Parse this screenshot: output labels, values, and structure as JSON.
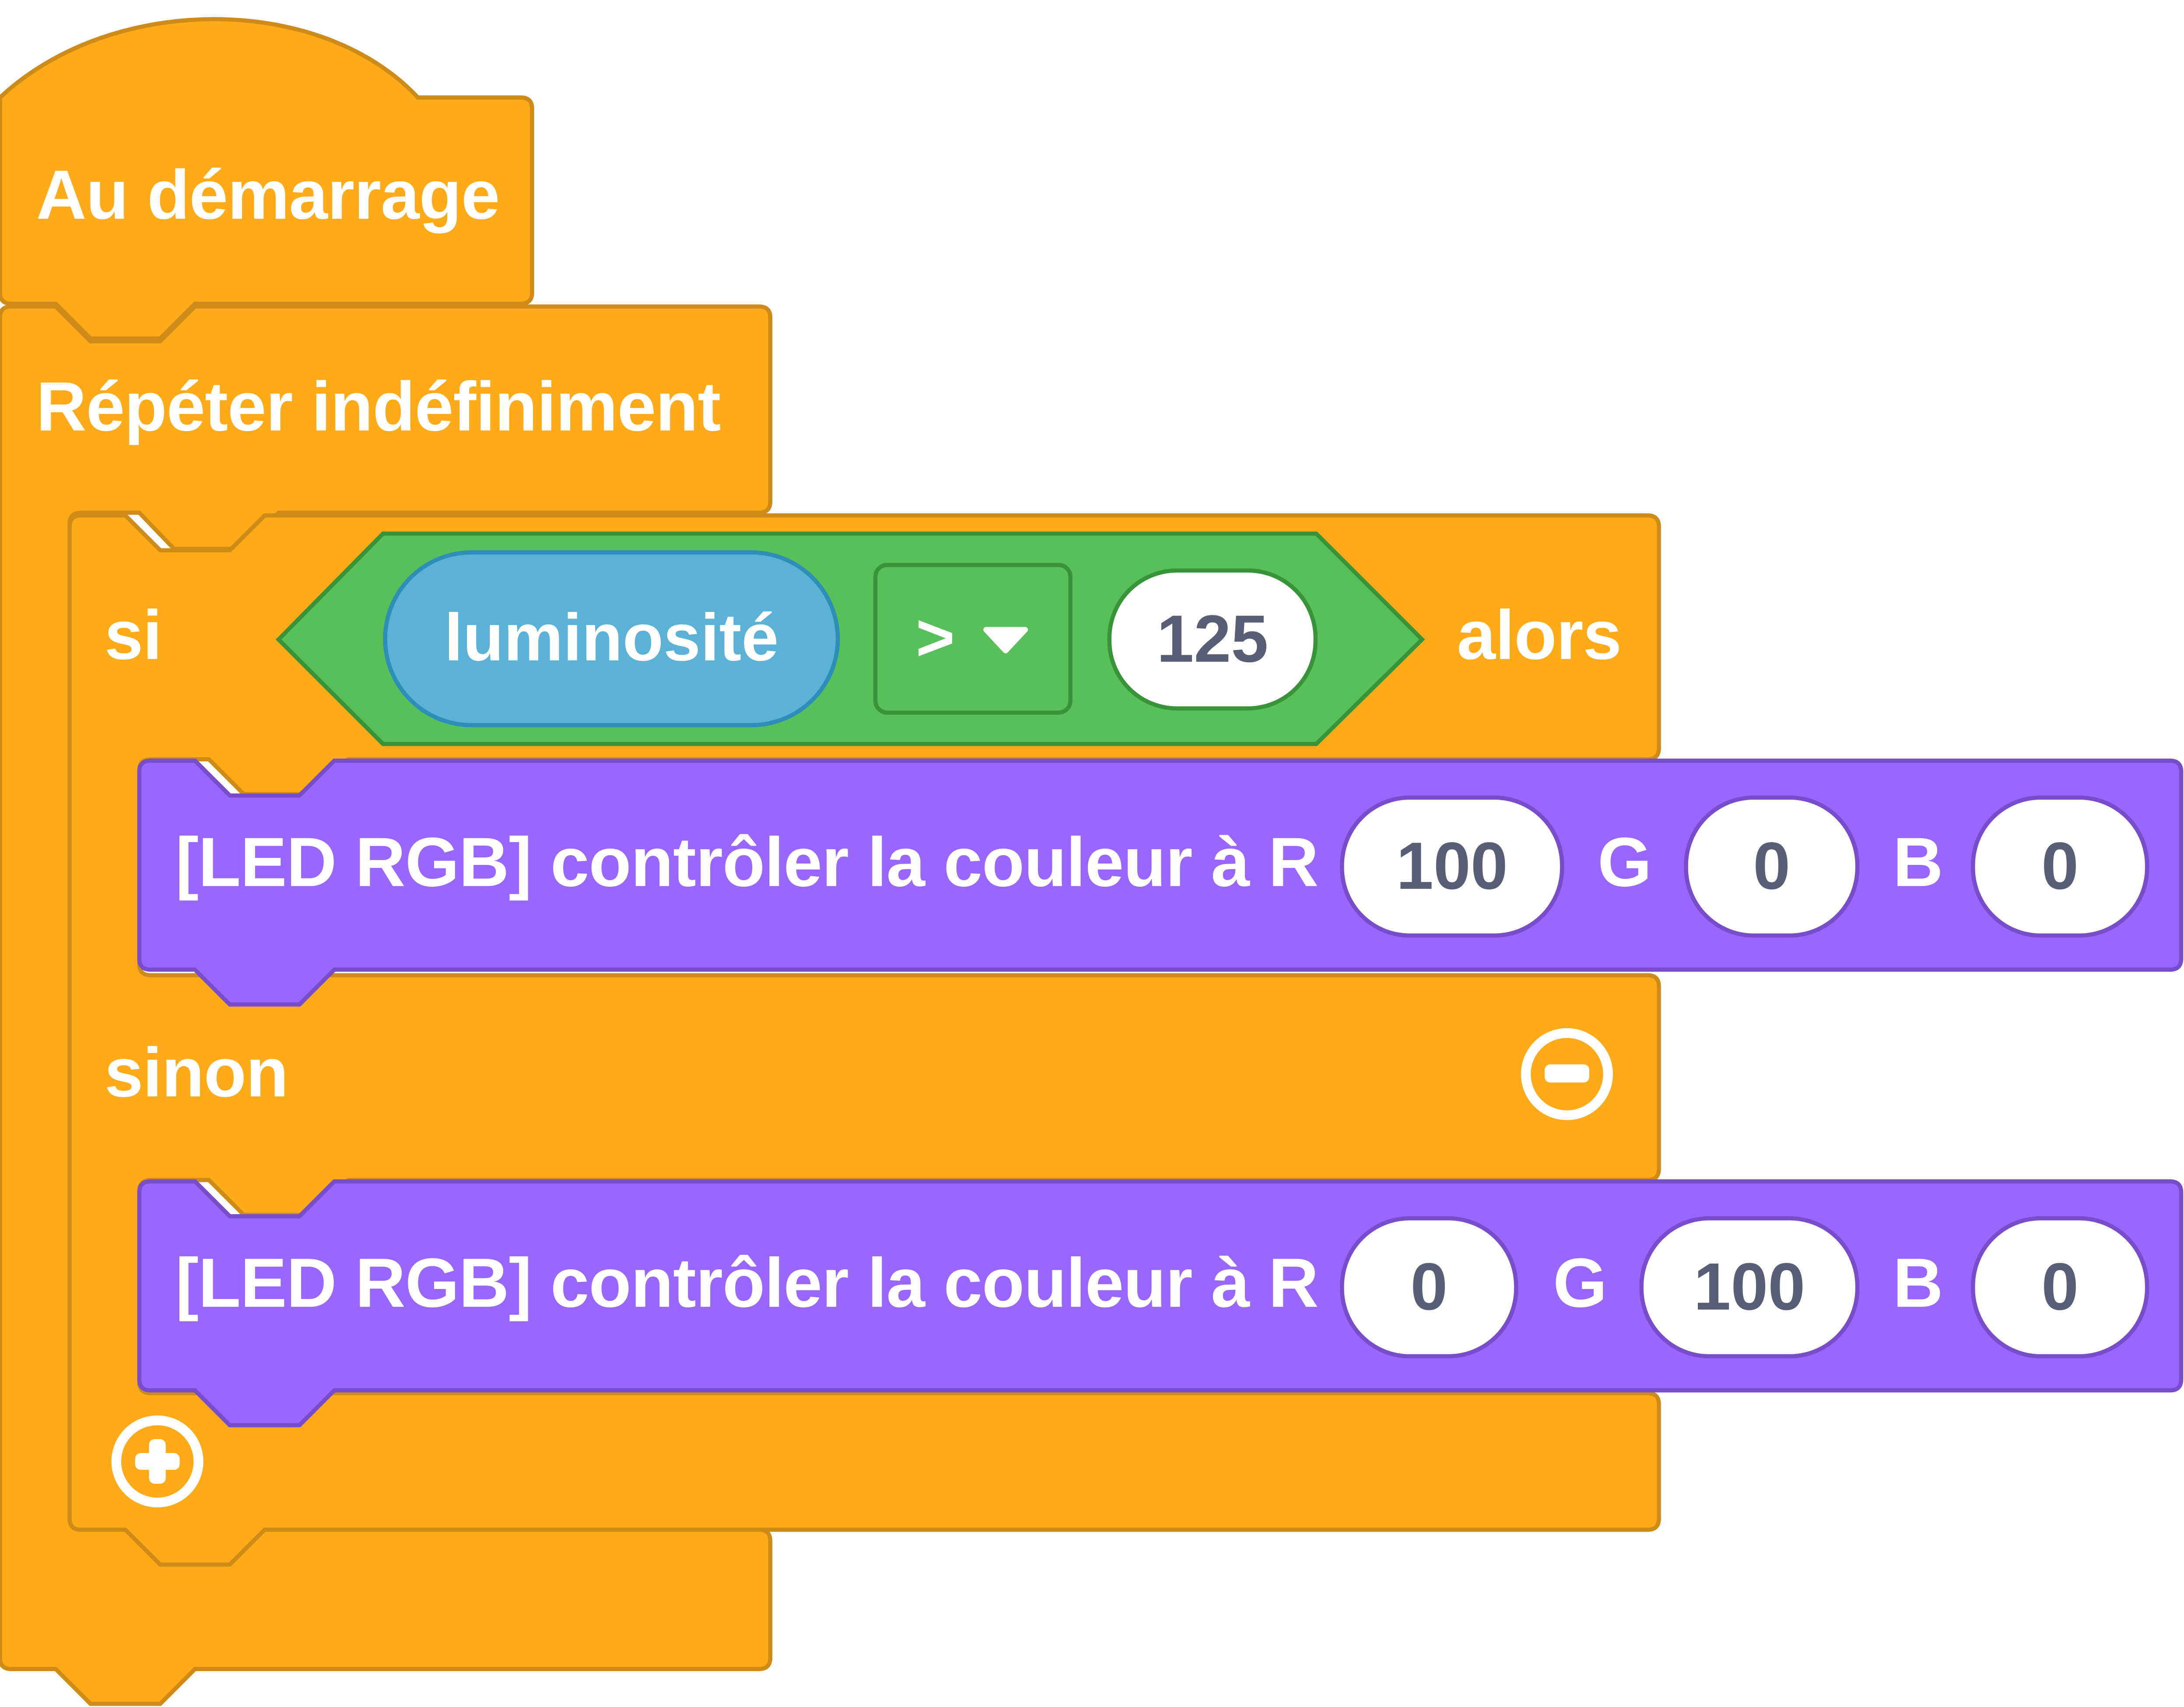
{
  "colors": {
    "control": "#ffab19",
    "control_border": "#cf8b17",
    "looks": "#9966ff",
    "looks_border": "#774dcb",
    "operator": "#59c059",
    "operator_border": "#389438",
    "sensing": "#5cb1d6",
    "sensing_border": "#2e8eb8",
    "input_text": "#575e75"
  },
  "hat_block": {
    "label": "Au démarrage"
  },
  "forever_block": {
    "label": "Répéter indéfiniment"
  },
  "if_else_block": {
    "if_label": "si",
    "then_label": "alors",
    "else_label": "sinon",
    "condition": {
      "reporter": "luminosité",
      "operator": ">",
      "value": "125"
    },
    "remove_else_icon": "minus-circle-icon",
    "add_branch_icon": "plus-circle-icon"
  },
  "led_block_1": {
    "label": "[LED RGB] contrôler la couleur à R",
    "r": "100",
    "g_label": "G",
    "g": "0",
    "b_label": "B",
    "b": "0"
  },
  "led_block_2": {
    "label": "[LED RGB] contrôler la couleur à R",
    "r": "0",
    "g_label": "G",
    "g": "100",
    "b_label": "B",
    "b": "0"
  }
}
